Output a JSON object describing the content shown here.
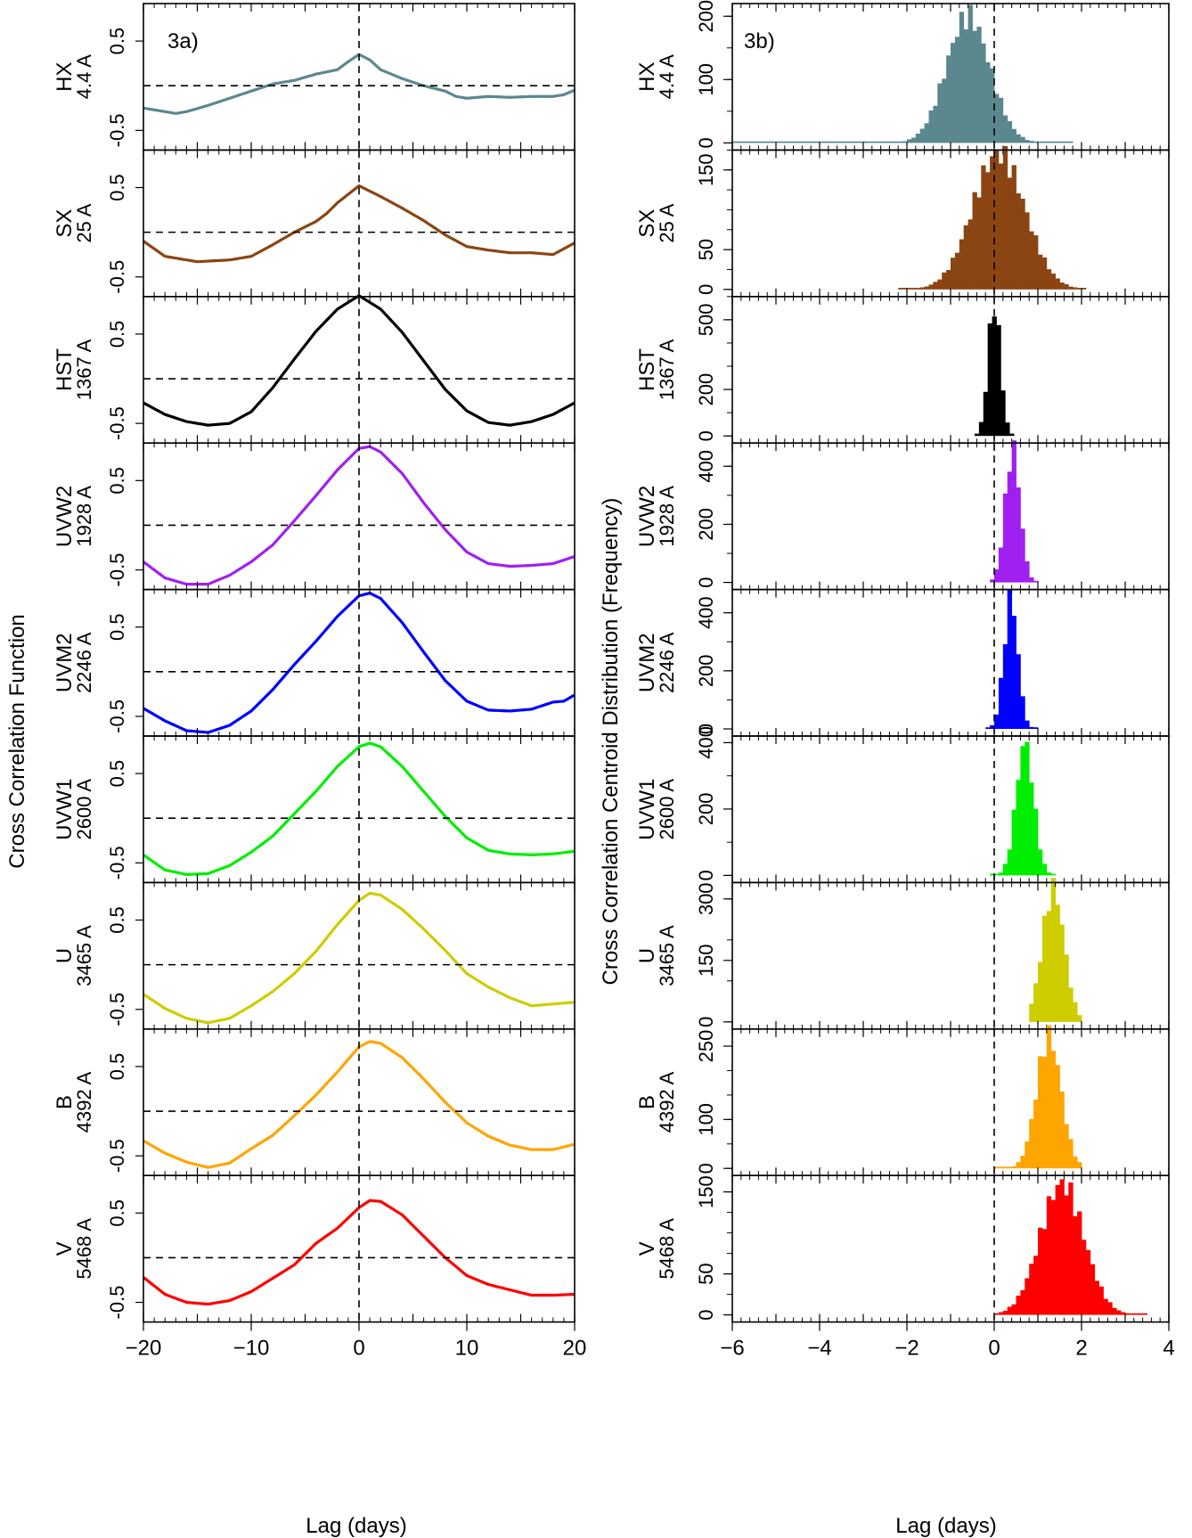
{
  "colors": {
    "HX": "#5b888e",
    "SX": "#8b4513",
    "HST": "#000000",
    "UVW2": "#a020f0",
    "UVM2": "#0000ff",
    "UVW1": "#00ee00",
    "U": "#cdcd00",
    "B": "#ffa500",
    "V": "#ff0000"
  },
  "chart_data": [
    {
      "type": "line",
      "panel_label": "3a)",
      "ylabel": "Cross Correlation Function",
      "xlabel": "Lag (days)",
      "xlim": [
        -20,
        20
      ],
      "ylim": [
        -0.72,
        0.92
      ],
      "x_ticks": [
        -20,
        -10,
        0,
        10,
        20
      ],
      "x_tick_labels": [
        "−20",
        "−10",
        "0",
        "10",
        "20"
      ],
      "y_ticks": [
        -0.5,
        0.5
      ],
      "y_tick_labels": [
        "-0.5",
        "0.5"
      ],
      "series": [
        {
          "name": "HX",
          "wavelength": "4.4 A",
          "points": [
            [
              -20,
              -0.25
            ],
            [
              -18,
              -0.29
            ],
            [
              -17,
              -0.31
            ],
            [
              -16,
              -0.29
            ],
            [
              -14,
              -0.22
            ],
            [
              -12,
              -0.14
            ],
            [
              -10,
              -0.06
            ],
            [
              -8,
              0.02
            ],
            [
              -6,
              0.06
            ],
            [
              -4,
              0.13
            ],
            [
              -2,
              0.18
            ],
            [
              -1,
              0.27
            ],
            [
              0,
              0.35
            ],
            [
              1,
              0.29
            ],
            [
              2,
              0.18
            ],
            [
              4,
              0.08
            ],
            [
              6,
              0.0
            ],
            [
              8,
              -0.06
            ],
            [
              9,
              -0.12
            ],
            [
              10,
              -0.14
            ],
            [
              12,
              -0.12
            ],
            [
              14,
              -0.13
            ],
            [
              16,
              -0.12
            ],
            [
              18,
              -0.12
            ],
            [
              19,
              -0.1
            ],
            [
              20,
              -0.05
            ]
          ]
        },
        {
          "name": "SX",
          "wavelength": "25 A",
          "points": [
            [
              -20,
              -0.1
            ],
            [
              -18,
              -0.27
            ],
            [
              -15,
              -0.33
            ],
            [
              -12,
              -0.31
            ],
            [
              -10,
              -0.27
            ],
            [
              -8,
              -0.14
            ],
            [
              -6,
              0.0
            ],
            [
              -4,
              0.12
            ],
            [
              -3,
              0.21
            ],
            [
              -2,
              0.33
            ],
            [
              0,
              0.52
            ],
            [
              2,
              0.4
            ],
            [
              4,
              0.27
            ],
            [
              6,
              0.13
            ],
            [
              8,
              -0.03
            ],
            [
              10,
              -0.16
            ],
            [
              12,
              -0.2
            ],
            [
              14,
              -0.23
            ],
            [
              16,
              -0.23
            ],
            [
              18,
              -0.25
            ],
            [
              20,
              -0.12
            ]
          ]
        },
        {
          "name": "HST",
          "wavelength": "1367 A",
          "points": [
            [
              -20,
              -0.27
            ],
            [
              -18,
              -0.4
            ],
            [
              -16,
              -0.48
            ],
            [
              -14,
              -0.52
            ],
            [
              -12,
              -0.5
            ],
            [
              -10,
              -0.37
            ],
            [
              -8,
              -0.1
            ],
            [
              -6,
              0.22
            ],
            [
              -4,
              0.53
            ],
            [
              -2,
              0.78
            ],
            [
              0,
              0.93
            ],
            [
              2,
              0.78
            ],
            [
              4,
              0.52
            ],
            [
              6,
              0.2
            ],
            [
              8,
              -0.12
            ],
            [
              10,
              -0.36
            ],
            [
              12,
              -0.49
            ],
            [
              14,
              -0.52
            ],
            [
              16,
              -0.48
            ],
            [
              18,
              -0.4
            ],
            [
              20,
              -0.27
            ]
          ]
        },
        {
          "name": "UVW2",
          "wavelength": "1928 A",
          "points": [
            [
              -20,
              -0.41
            ],
            [
              -18,
              -0.59
            ],
            [
              -16,
              -0.66
            ],
            [
              -14,
              -0.66
            ],
            [
              -12,
              -0.56
            ],
            [
              -10,
              -0.41
            ],
            [
              -8,
              -0.22
            ],
            [
              -6,
              0.05
            ],
            [
              -4,
              0.33
            ],
            [
              -2,
              0.62
            ],
            [
              0,
              0.86
            ],
            [
              1,
              0.88
            ],
            [
              2,
              0.82
            ],
            [
              4,
              0.58
            ],
            [
              6,
              0.25
            ],
            [
              8,
              -0.05
            ],
            [
              10,
              -0.3
            ],
            [
              12,
              -0.43
            ],
            [
              14,
              -0.46
            ],
            [
              16,
              -0.45
            ],
            [
              18,
              -0.43
            ],
            [
              20,
              -0.35
            ]
          ]
        },
        {
          "name": "UVM2",
          "wavelength": "2246 A",
          "points": [
            [
              -20,
              -0.41
            ],
            [
              -18,
              -0.55
            ],
            [
              -16,
              -0.66
            ],
            [
              -14,
              -0.68
            ],
            [
              -12,
              -0.6
            ],
            [
              -10,
              -0.44
            ],
            [
              -8,
              -0.2
            ],
            [
              -6,
              0.08
            ],
            [
              -4,
              0.34
            ],
            [
              -2,
              0.62
            ],
            [
              0,
              0.85
            ],
            [
              1,
              0.88
            ],
            [
              2,
              0.82
            ],
            [
              4,
              0.55
            ],
            [
              6,
              0.22
            ],
            [
              8,
              -0.1
            ],
            [
              10,
              -0.33
            ],
            [
              12,
              -0.43
            ],
            [
              14,
              -0.44
            ],
            [
              16,
              -0.42
            ],
            [
              18,
              -0.34
            ],
            [
              19,
              -0.33
            ],
            [
              20,
              -0.26
            ]
          ]
        },
        {
          "name": "UVW1",
          "wavelength": "2600 A",
          "points": [
            [
              -20,
              -0.41
            ],
            [
              -18,
              -0.58
            ],
            [
              -16,
              -0.63
            ],
            [
              -14,
              -0.62
            ],
            [
              -12,
              -0.53
            ],
            [
              -10,
              -0.38
            ],
            [
              -8,
              -0.2
            ],
            [
              -6,
              0.05
            ],
            [
              -4,
              0.3
            ],
            [
              -2,
              0.58
            ],
            [
              0,
              0.8
            ],
            [
              1,
              0.84
            ],
            [
              2,
              0.8
            ],
            [
              4,
              0.58
            ],
            [
              6,
              0.3
            ],
            [
              8,
              0.02
            ],
            [
              10,
              -0.22
            ],
            [
              12,
              -0.36
            ],
            [
              14,
              -0.4
            ],
            [
              16,
              -0.41
            ],
            [
              18,
              -0.4
            ],
            [
              20,
              -0.37
            ]
          ]
        },
        {
          "name": "U",
          "wavelength": "3465 A",
          "points": [
            [
              -20,
              -0.33
            ],
            [
              -18,
              -0.49
            ],
            [
              -16,
              -0.6
            ],
            [
              -14,
              -0.65
            ],
            [
              -12,
              -0.6
            ],
            [
              -10,
              -0.46
            ],
            [
              -8,
              -0.3
            ],
            [
              -6,
              -0.1
            ],
            [
              -4,
              0.15
            ],
            [
              -2,
              0.45
            ],
            [
              0,
              0.72
            ],
            [
              1,
              0.8
            ],
            [
              2,
              0.78
            ],
            [
              4,
              0.62
            ],
            [
              6,
              0.4
            ],
            [
              8,
              0.16
            ],
            [
              10,
              -0.1
            ],
            [
              12,
              -0.25
            ],
            [
              14,
              -0.37
            ],
            [
              16,
              -0.46
            ],
            [
              18,
              -0.44
            ],
            [
              20,
              -0.42
            ]
          ]
        },
        {
          "name": "B",
          "wavelength": "4392 A",
          "points": [
            [
              -20,
              -0.33
            ],
            [
              -18,
              -0.47
            ],
            [
              -16,
              -0.57
            ],
            [
              -14,
              -0.63
            ],
            [
              -12,
              -0.58
            ],
            [
              -10,
              -0.42
            ],
            [
              -8,
              -0.27
            ],
            [
              -6,
              -0.05
            ],
            [
              -4,
              0.18
            ],
            [
              -2,
              0.44
            ],
            [
              0,
              0.72
            ],
            [
              1,
              0.78
            ],
            [
              2,
              0.76
            ],
            [
              4,
              0.6
            ],
            [
              6,
              0.36
            ],
            [
              8,
              0.1
            ],
            [
              10,
              -0.13
            ],
            [
              12,
              -0.28
            ],
            [
              14,
              -0.38
            ],
            [
              16,
              -0.43
            ],
            [
              18,
              -0.43
            ],
            [
              20,
              -0.37
            ]
          ]
        },
        {
          "name": "V",
          "wavelength": "5468 A",
          "points": [
            [
              -20,
              -0.22
            ],
            [
              -18,
              -0.41
            ],
            [
              -16,
              -0.5
            ],
            [
              -14,
              -0.52
            ],
            [
              -12,
              -0.48
            ],
            [
              -10,
              -0.38
            ],
            [
              -8,
              -0.23
            ],
            [
              -6,
              -0.08
            ],
            [
              -4,
              0.16
            ],
            [
              -2,
              0.33
            ],
            [
              0,
              0.56
            ],
            [
              1,
              0.64
            ],
            [
              2,
              0.63
            ],
            [
              4,
              0.48
            ],
            [
              6,
              0.24
            ],
            [
              8,
              0.0
            ],
            [
              10,
              -0.2
            ],
            [
              12,
              -0.3
            ],
            [
              14,
              -0.36
            ],
            [
              16,
              -0.42
            ],
            [
              18,
              -0.42
            ],
            [
              20,
              -0.41
            ]
          ]
        }
      ]
    },
    {
      "type": "bar",
      "panel_label": "3b)",
      "ylabel": "Cross Correlation Centroid Distribution (Frequency)",
      "xlabel": "Lag (days)",
      "xlim": [
        -6,
        4
      ],
      "x_ticks": [
        -6,
        -4,
        -2,
        0,
        2,
        4
      ],
      "x_tick_labels": [
        "−6",
        "−4",
        "−2",
        "0",
        "2",
        "4"
      ],
      "bin_width": 0.1,
      "series": [
        {
          "name": "HX",
          "wavelength": "4.4 A",
          "ylim": [
            0,
            220
          ],
          "y_ticks": [
            0,
            100,
            200
          ],
          "y_tick_labels": [
            "0",
            "100",
            "200"
          ],
          "mean": -0.6,
          "sigma": 0.5,
          "peak": 200,
          "min_lag": -6,
          "max_lag": 1.8
        },
        {
          "name": "SX",
          "wavelength": "25 A",
          "ylim": [
            0,
            175
          ],
          "y_ticks": [
            0,
            50,
            150
          ],
          "y_tick_labels": [
            "0",
            "50",
            "150"
          ],
          "mean": 0.1,
          "sigma": 0.6,
          "peak": 170,
          "min_lag": -2.2,
          "max_lag": 2.1
        },
        {
          "name": "HST",
          "wavelength": "1367 A",
          "ylim": [
            0,
            600
          ],
          "y_ticks": [
            0,
            200,
            500
          ],
          "y_tick_labels": [
            "0",
            "200",
            "500"
          ],
          "mean": 0.0,
          "sigma": 0.14,
          "peak": 570,
          "min_lag": -0.45,
          "max_lag": 0.45
        },
        {
          "name": "UVW2",
          "wavelength": "1928 A",
          "ylim": [
            0,
            480
          ],
          "y_ticks": [
            0,
            200,
            400
          ],
          "y_tick_labels": [
            "0",
            "200",
            "400"
          ],
          "mean": 0.42,
          "sigma": 0.17,
          "peak": 460,
          "min_lag": -0.1,
          "max_lag": 1.0
        },
        {
          "name": "UVM2",
          "wavelength": "2246 A",
          "ylim": [
            0,
            480
          ],
          "y_ticks": [
            0,
            200,
            400
          ],
          "y_tick_labels": [
            "0",
            "200",
            "400"
          ],
          "mean": 0.38,
          "sigma": 0.16,
          "peak": 450,
          "min_lag": -0.2,
          "max_lag": 1.0
        },
        {
          "name": "UVW1",
          "wavelength": "2600 A",
          "ylim": [
            0,
            420
          ],
          "y_ticks": [
            0,
            200,
            400
          ],
          "y_tick_labels": [
            "0",
            "200",
            "400"
          ],
          "mean": 0.7,
          "sigma": 0.2,
          "peak": 400,
          "min_lag": -0.1,
          "max_lag": 1.4
        },
        {
          "name": "U",
          "wavelength": "3465 A",
          "ylim": [
            0,
            340
          ],
          "y_ticks": [
            0,
            150,
            300
          ],
          "y_tick_labels": [
            "0",
            "150",
            "300"
          ],
          "mean": 1.35,
          "sigma": 0.25,
          "peak": 325,
          "min_lag": 0.8,
          "max_lag": 2.0
        },
        {
          "name": "B",
          "wavelength": "4392 A",
          "ylim": [
            0,
            285
          ],
          "y_ticks": [
            0,
            100,
            250
          ],
          "y_tick_labels": [
            "0",
            "100",
            "250"
          ],
          "mean": 1.25,
          "sigma": 0.28,
          "peak": 270,
          "min_lag": 0.0,
          "max_lag": 2.0
        },
        {
          "name": "V",
          "wavelength": "5468 A",
          "ylim": [
            0,
            170
          ],
          "y_ticks": [
            0,
            50,
            150
          ],
          "y_tick_labels": [
            "0",
            "50",
            "150"
          ],
          "mean": 1.55,
          "sigma": 0.5,
          "peak": 160,
          "min_lag": 0.0,
          "max_lag": 3.5
        }
      ]
    }
  ]
}
